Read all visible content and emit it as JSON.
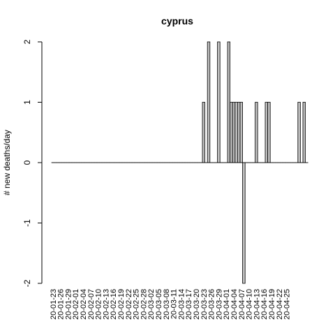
{
  "chart_data": {
    "type": "bar",
    "title": "cyprus",
    "xlabel": "",
    "ylabel": "# new deaths/day",
    "ylim": [
      -2,
      2
    ],
    "y_ticks": [
      -2,
      -1,
      0,
      1,
      2
    ],
    "grid": false,
    "bar_color": "#bebebe",
    "start_date": "2020-01-23",
    "x_tick_labels": [
      "20-01-23",
      "20-01-26",
      "20-01-29",
      "20-02-01",
      "20-02-04",
      "20-02-07",
      "20-02-10",
      "20-02-13",
      "20-02-16",
      "20-02-19",
      "20-02-22",
      "20-02-25",
      "20-02-28",
      "20-03-02",
      "20-03-05",
      "20-03-08",
      "20-03-11",
      "20-03-14",
      "20-03-17",
      "20-03-20",
      "20-03-23",
      "20-03-26",
      "20-03-29",
      "20-04-01",
      "20-04-04",
      "20-04-07",
      "20-04-10",
      "20-04-13",
      "20-04-16",
      "20-04-19",
      "20-04-22",
      "20-04-25"
    ],
    "values": [
      0,
      0,
      0,
      0,
      0,
      0,
      0,
      0,
      0,
      0,
      0,
      0,
      0,
      0,
      0,
      0,
      0,
      0,
      0,
      0,
      0,
      0,
      0,
      0,
      0,
      0,
      0,
      0,
      0,
      0,
      0,
      0,
      0,
      0,
      0,
      0,
      0,
      0,
      0,
      0,
      0,
      0,
      0,
      0,
      0,
      0,
      0,
      0,
      0,
      0,
      0,
      0,
      0,
      0,
      0,
      0,
      0,
      0,
      0,
      0,
      1,
      0,
      2,
      0,
      0,
      0,
      2,
      0,
      0,
      0,
      2,
      1,
      1,
      1,
      1,
      1,
      -2,
      0,
      0,
      0,
      0,
      1,
      0,
      0,
      0,
      1,
      1,
      0,
      0,
      0,
      0,
      0,
      0,
      0,
      0,
      0,
      0,
      0,
      1,
      0,
      1,
      0
    ]
  }
}
